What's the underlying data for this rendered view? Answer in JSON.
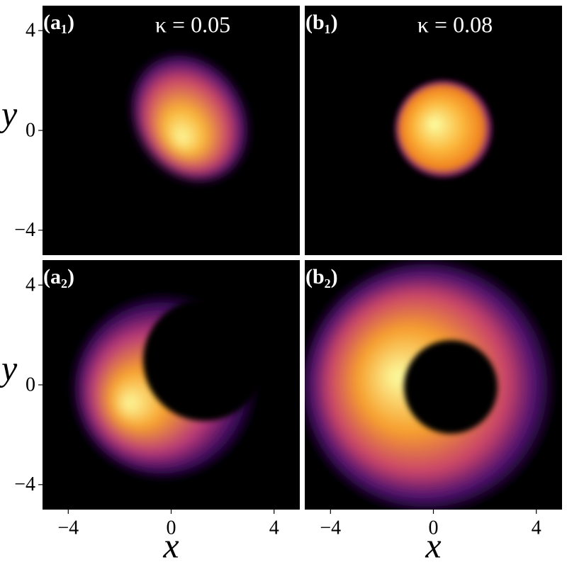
{
  "chart_data": [
    {
      "type": "heatmap",
      "panel_label": "(a₁)",
      "title": "κ = 0.05",
      "ylabel": "y",
      "xlim": [
        -5,
        5
      ],
      "ylim": [
        -5,
        5
      ],
      "yticks": [
        {
          "value": -4,
          "label": "−4"
        },
        0,
        4
      ]
    },
    {
      "type": "heatmap",
      "panel_label": "(b₁)",
      "title": "κ = 0.08",
      "xlim": [
        -5,
        5
      ],
      "ylim": [
        -5,
        5
      ]
    },
    {
      "type": "heatmap",
      "panel_label": "(a₂)",
      "xlabel": "x",
      "ylabel": "y",
      "xlim": [
        -5,
        5
      ],
      "ylim": [
        -5,
        5
      ],
      "xticks": [
        {
          "value": -4,
          "label": "−4"
        },
        0,
        4
      ],
      "yticks": [
        {
          "value": -4,
          "label": "−4"
        },
        0,
        4
      ]
    },
    {
      "type": "heatmap",
      "panel_label": "(b₂)",
      "xlabel": "x",
      "xlim": [
        -5,
        5
      ],
      "ylim": [
        -5,
        5
      ],
      "xticks": [
        {
          "value": -4,
          "label": "−4"
        },
        0,
        4
      ]
    }
  ]
}
